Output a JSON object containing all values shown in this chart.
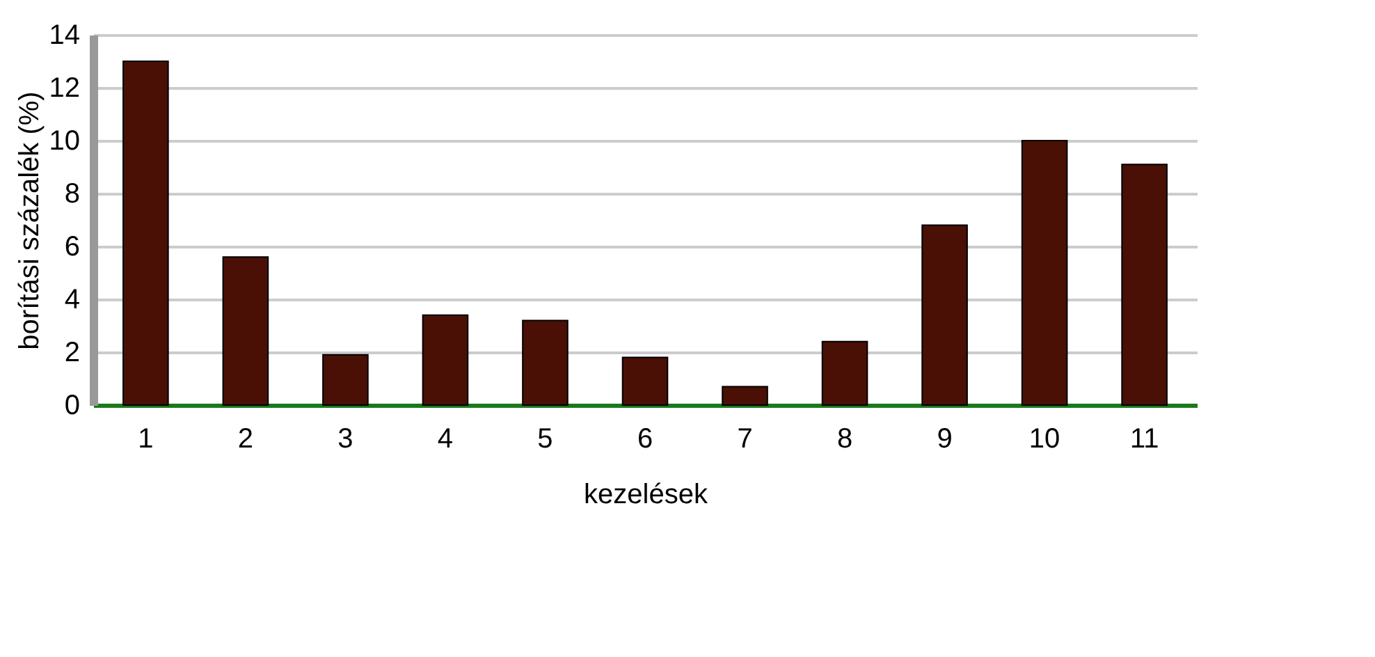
{
  "chart_data": {
    "type": "bar",
    "xlabel": "kezelések",
    "ylabel": "borítási százalék (%)",
    "categories": [
      "1",
      "2",
      "3",
      "4",
      "5",
      "6",
      "7",
      "8",
      "9",
      "10",
      "11"
    ],
    "values": [
      13.0,
      5.6,
      1.9,
      3.4,
      3.2,
      1.8,
      0.7,
      2.4,
      6.8,
      10.0,
      9.1
    ],
    "color": "#4a1005",
    "ylim": [
      0,
      14
    ],
    "yticks": [
      0,
      2,
      4,
      6,
      8,
      10,
      12,
      14
    ],
    "grid": "y"
  }
}
